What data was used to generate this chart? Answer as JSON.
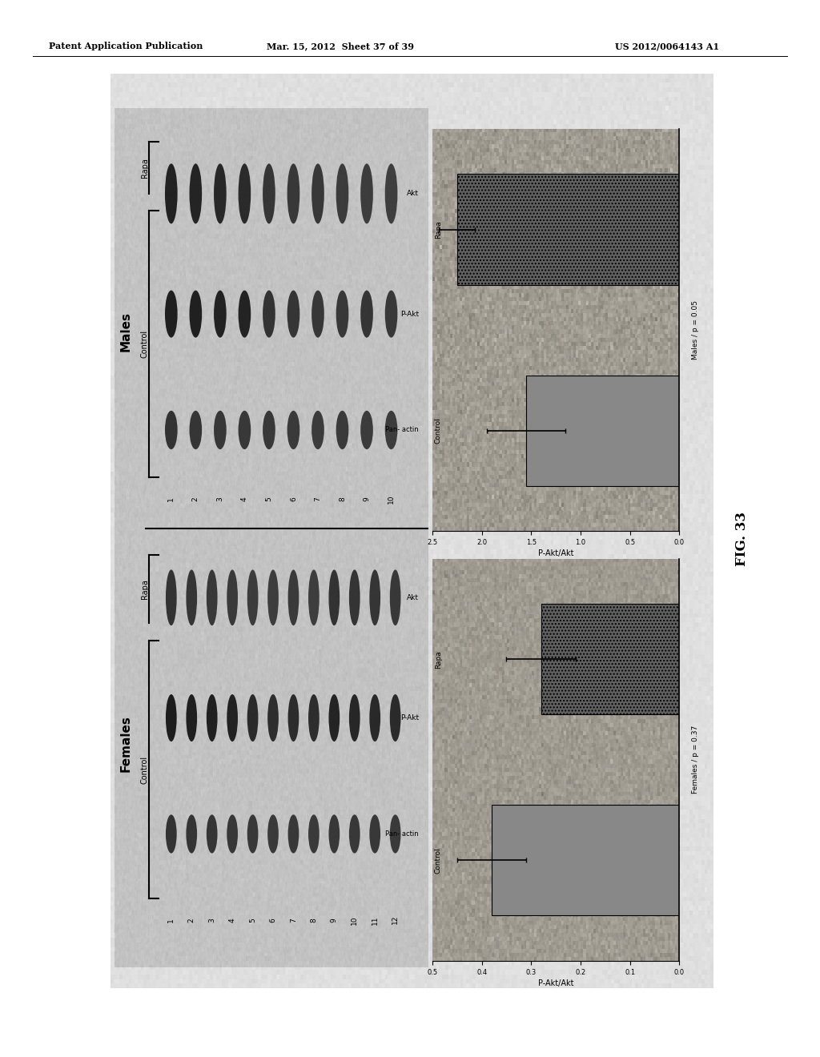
{
  "header_left": "Patent Application Publication",
  "header_mid": "Mar. 15, 2012  Sheet 37 of 39",
  "header_right": "US 2012/0064143 A1",
  "fig_label": "FIG. 33",
  "page_bg_color": "#ffffff",
  "fig_bg_color": "#c0b8a8",
  "gel_bg_color": "#f0ece0",
  "chart_bg_color": "#b8b0a0",
  "males_chart": {
    "title": "Males / p = 0.05",
    "xlabel": "P-Akt/Akt",
    "bars": [
      {
        "label": "Control",
        "value": 1.55,
        "error": 0.4,
        "color": "#888888",
        "hatch": null
      },
      {
        "label": "Rapa",
        "value": 2.25,
        "error": 0.18,
        "color": "#606060",
        "hatch": "...."
      }
    ],
    "xlim_reversed": [
      2.5,
      0.0
    ],
    "xticks": [
      2.5,
      2.0,
      1.5,
      1.0,
      0.5,
      0.0
    ]
  },
  "females_chart": {
    "title": "Females / p = 0.37",
    "xlabel": "P-Akt/Akt",
    "bars": [
      {
        "label": "Control",
        "value": 0.38,
        "error": 0.07,
        "color": "#888888",
        "hatch": null
      },
      {
        "label": "Rapa",
        "value": 0.28,
        "error": 0.07,
        "color": "#606060",
        "hatch": "...."
      }
    ],
    "xlim_reversed": [
      0.5,
      0.0
    ],
    "xticks": [
      0.5,
      0.4,
      0.3,
      0.2,
      0.1,
      0.0
    ]
  },
  "gel": {
    "females_label": "Females",
    "males_label": "Males",
    "row_labels": [
      "Akt",
      "P-Akt",
      "Pan- actin"
    ],
    "females_control_nums": [
      "1",
      "2",
      "3",
      "4"
    ],
    "females_rapa_nums": [
      "5",
      "6",
      "7",
      "8",
      "9",
      "10",
      "11",
      "12"
    ],
    "males_control_nums": [
      "1",
      "2",
      "3",
      "4"
    ],
    "males_rapa_nums": [
      "5",
      "6",
      "7",
      "8",
      "9",
      "10"
    ]
  }
}
